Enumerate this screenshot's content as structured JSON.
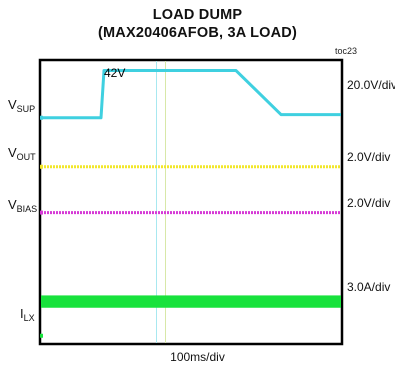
{
  "title": "LOAD DUMP",
  "subtitle": "(MAX20406AFOB, 3A LOAD)",
  "figure_id": "toc23",
  "time_div": "100ms/div",
  "annotation": "42V",
  "signals": [
    {
      "key": "vsup",
      "main": "V",
      "sub": "SUP",
      "scale": "20.0V/div",
      "color": "#3fd0e0"
    },
    {
      "key": "vout",
      "main": "V",
      "sub": "OUT",
      "scale": "2.0V/div",
      "color": "#f2e72a"
    },
    {
      "key": "vbias",
      "main": "V",
      "sub": "BIAS",
      "scale": "2.0V/div",
      "color": "#d63ad6"
    },
    {
      "key": "ilx",
      "main": "I",
      "sub": "LX",
      "scale": "3.0A/div",
      "color": "#18e23c"
    }
  ],
  "chart_data": {
    "type": "line",
    "title": "LOAD DUMP",
    "subtitle": "(MAX20406AFOB, 3A LOAD)",
    "xlabel": "100ms/div",
    "x_divisions": 10,
    "y_divisions": 8,
    "grid": false,
    "series": [
      {
        "name": "VSUP",
        "scale": "20.0V/div",
        "x_div": [
          0,
          2.0,
          2.1,
          6.5,
          8.0,
          10
        ],
        "y_div_from_top": [
          1.61,
          1.61,
          0.27,
          0.27,
          1.52,
          1.52
        ],
        "label": "42V"
      },
      {
        "name": "VOUT",
        "scale": "2.0V/div",
        "y_div_from_top": 3.0
      },
      {
        "name": "VBIAS",
        "scale": "2.0V/div",
        "y_div_from_top": 4.3
      },
      {
        "name": "ILX",
        "scale": "3.0A/div",
        "y_div_from_top_band": [
          6.65,
          7.0
        ]
      }
    ],
    "cursors_x_div": [
      3.85,
      4.15
    ]
  }
}
